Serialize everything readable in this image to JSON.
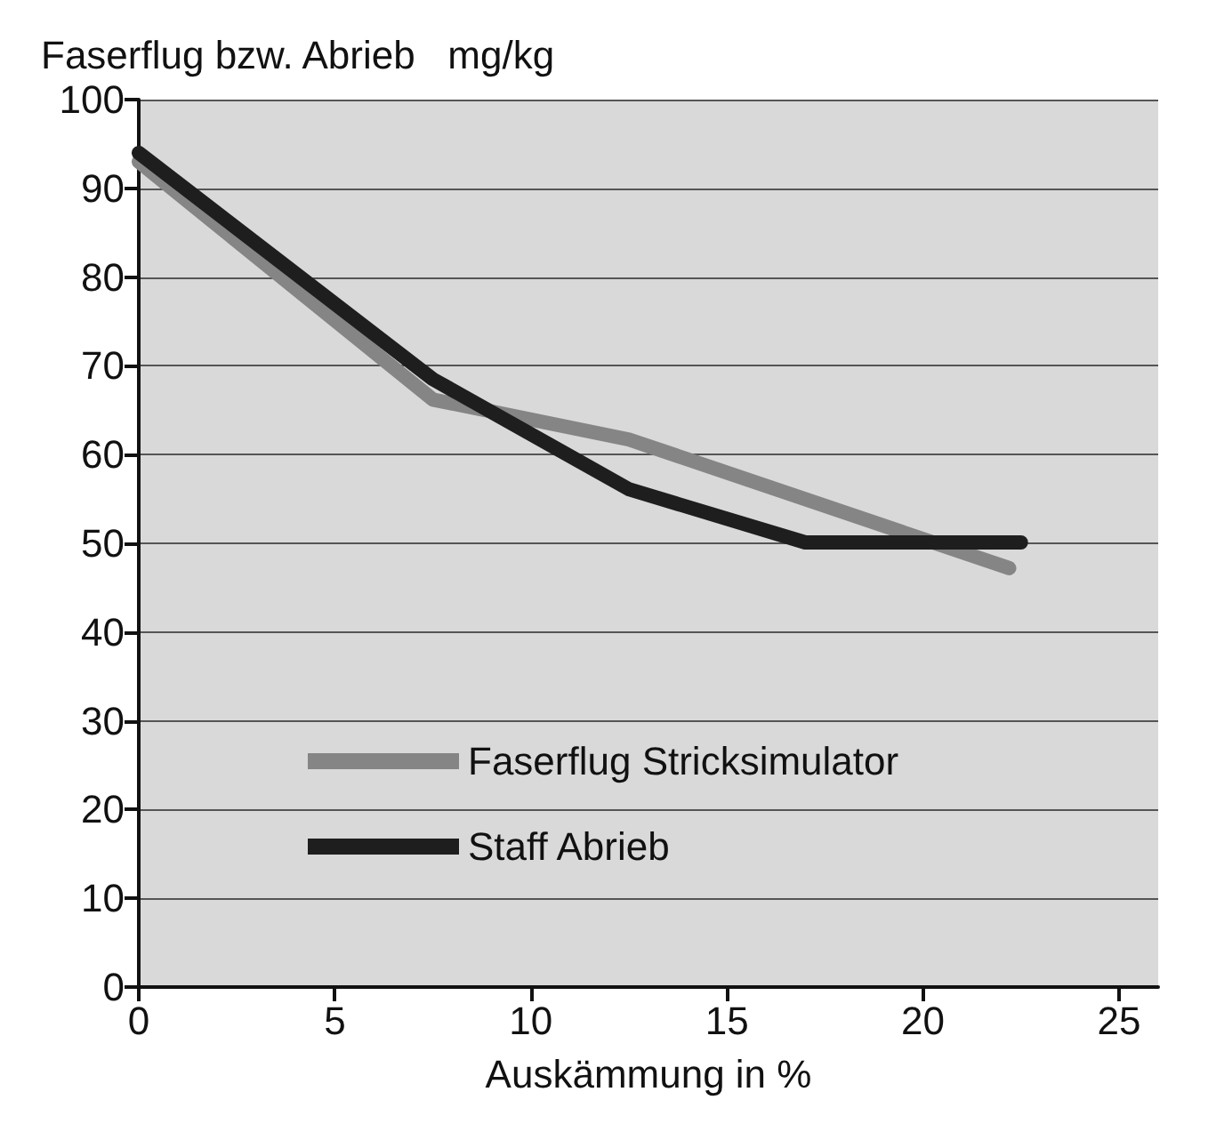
{
  "chart_data": {
    "type": "line",
    "ylabel": "Faserflug bzw. Abrieb   mg/kg",
    "xlabel": "Auskämmung in %",
    "xlim": [
      0,
      26
    ],
    "xticks": [
      0,
      5,
      10,
      15,
      20,
      25
    ],
    "ylim": [
      0,
      100
    ],
    "yticks": [
      0,
      10,
      20,
      30,
      40,
      50,
      60,
      70,
      80,
      90,
      100
    ],
    "grid": "y",
    "legend": "bottom left",
    "marker": "none",
    "line_style": "solid",
    "series": [
      {
        "name": "Faserflug Stricksimulator",
        "color": "#858585",
        "x": [
          0,
          7.5,
          12.5,
          22.2
        ],
        "values": [
          93,
          66.2,
          61.7,
          47.2
        ]
      },
      {
        "name": "Staff Abrieb",
        "color": "#1e1e1e",
        "x": [
          0,
          7.5,
          12.5,
          17,
          22.5
        ],
        "values": [
          94,
          68.5,
          56.1,
          50.1,
          50.1
        ]
      }
    ]
  }
}
